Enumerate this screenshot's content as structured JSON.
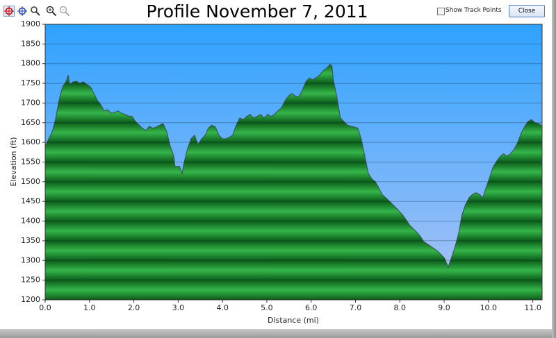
{
  "toolbar": {
    "checkbox_label": "Show Track Points",
    "button": "Close"
  },
  "chart_data": {
    "type": "area",
    "title": "Profile November 7, 2011",
    "x_label": "Distance   (mi)",
    "y_label": "Elevation (ft)",
    "color": "#2aa03c",
    "line_color": "#3a4a5a",
    "grid": true,
    "xlim": [
      0,
      11.21
    ],
    "ylim": [
      1200,
      1900
    ],
    "xticks": [
      {
        "value": 0,
        "label": "0.0"
      },
      {
        "value": 1,
        "label": "1.0"
      },
      {
        "value": 2,
        "label": "2.0"
      },
      {
        "value": 3,
        "label": "3.0"
      },
      {
        "value": 4,
        "label": "4.0"
      },
      {
        "value": 5,
        "label": "5.0"
      },
      {
        "value": 6,
        "label": "6.0"
      },
      {
        "value": 7,
        "label": "7.0"
      },
      {
        "value": 8,
        "label": "8.0"
      },
      {
        "value": 9,
        "label": "9.0"
      },
      {
        "value": 10,
        "label": "10.0"
      },
      {
        "value": 11,
        "label": "11.0"
      }
    ],
    "yticks": [
      1200,
      1250,
      1300,
      1350,
      1400,
      1450,
      1500,
      1550,
      1600,
      1650,
      1700,
      1750,
      1800,
      1850,
      1900
    ],
    "x": [
      0,
      0.08,
      0.16,
      0.24,
      0.31,
      0.39,
      0.47,
      0.52,
      0.55,
      0.63,
      0.71,
      0.78,
      0.86,
      0.94,
      1.02,
      1.1,
      1.18,
      1.25,
      1.33,
      1.41,
      1.49,
      1.57,
      1.65,
      1.72,
      1.8,
      1.88,
      1.96,
      2.04,
      2.12,
      2.19,
      2.27,
      2.35,
      2.43,
      2.51,
      2.59,
      2.66,
      2.74,
      2.82,
      2.9,
      2.93,
      3.03,
      3.09,
      3.13,
      3.21,
      3.29,
      3.37,
      3.45,
      3.53,
      3.61,
      3.68,
      3.76,
      3.84,
      3.92,
      4.0,
      4.08,
      4.15,
      4.23,
      4.31,
      4.39,
      4.47,
      4.55,
      4.62,
      4.7,
      4.78,
      4.86,
      4.94,
      5.02,
      5.09,
      5.17,
      5.25,
      5.33,
      5.41,
      5.49,
      5.56,
      5.64,
      5.72,
      5.8,
      5.88,
      5.96,
      6.03,
      6.11,
      6.19,
      6.27,
      6.35,
      6.43,
      6.47,
      6.5,
      6.58,
      6.66,
      6.74,
      6.82,
      6.9,
      6.97,
      7.05,
      7.13,
      7.21,
      7.29,
      7.37,
      7.45,
      7.52,
      7.6,
      7.76,
      7.92,
      8.07,
      8.23,
      8.39,
      8.46,
      8.54,
      8.7,
      8.86,
      9.01,
      9.09,
      9.17,
      9.25,
      9.33,
      9.4,
      9.48,
      9.56,
      9.64,
      9.72,
      9.8,
      9.87,
      9.95,
      10.03,
      10.11,
      10.19,
      10.27,
      10.34,
      10.42,
      10.5,
      10.58,
      10.66,
      10.74,
      10.82,
      10.89,
      10.97,
      11.05,
      11.13,
      11.21
    ],
    "values": [
      1591,
      1609,
      1627,
      1662,
      1706,
      1741,
      1754,
      1771,
      1747,
      1754,
      1755,
      1750,
      1754,
      1747,
      1741,
      1724,
      1706,
      1697,
      1680,
      1683,
      1674,
      1676,
      1680,
      1674,
      1671,
      1667,
      1666,
      1653,
      1644,
      1636,
      1630,
      1641,
      1636,
      1639,
      1644,
      1648,
      1627,
      1591,
      1565,
      1539,
      1539,
      1521,
      1547,
      1583,
      1609,
      1618,
      1595,
      1609,
      1618,
      1636,
      1644,
      1639,
      1618,
      1609,
      1609,
      1613,
      1618,
      1644,
      1662,
      1658,
      1666,
      1671,
      1662,
      1666,
      1671,
      1662,
      1671,
      1666,
      1671,
      1680,
      1688,
      1706,
      1718,
      1724,
      1718,
      1715,
      1732,
      1754,
      1764,
      1759,
      1764,
      1771,
      1782,
      1789,
      1798,
      1794,
      1759,
      1715,
      1662,
      1653,
      1644,
      1641,
      1639,
      1636,
      1609,
      1565,
      1521,
      1507,
      1500,
      1486,
      1468,
      1451,
      1433,
      1415,
      1389,
      1371,
      1362,
      1348,
      1336,
      1323,
      1306,
      1283,
      1309,
      1336,
      1371,
      1415,
      1442,
      1459,
      1468,
      1472,
      1468,
      1459,
      1486,
      1512,
      1539,
      1553,
      1565,
      1571,
      1565,
      1571,
      1583,
      1600,
      1623,
      1641,
      1653,
      1658,
      1650,
      1648,
      1641
    ]
  }
}
